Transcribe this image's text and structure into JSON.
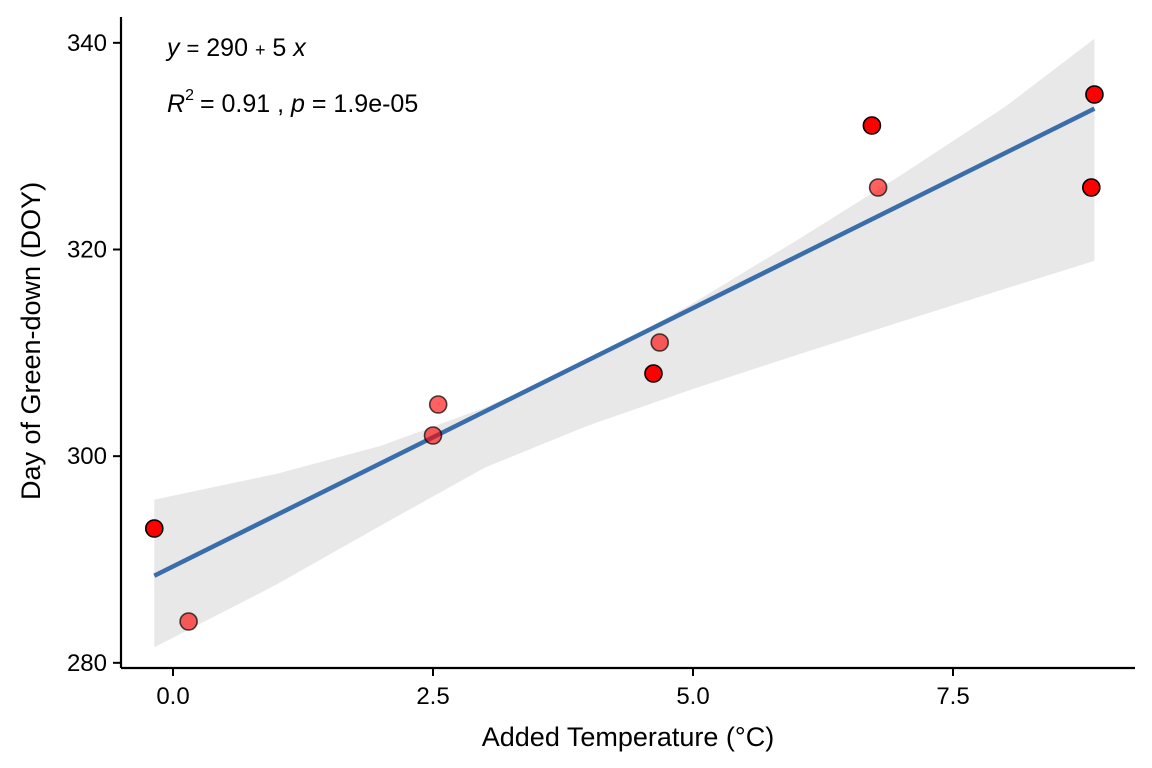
{
  "chart_data": {
    "type": "scatter",
    "xlabel": "Added Temperature (°C)",
    "ylabel": "Day of Green-down (DOY)",
    "xlim": [
      -0.5,
      9.25
    ],
    "ylim": [
      279.5,
      342.5
    ],
    "xticks": [
      0,
      2.5,
      5,
      7.5
    ],
    "xtick_labels": [
      "0.0",
      "2.5",
      "5.0",
      "7.5"
    ],
    "yticks": [
      280,
      300,
      320,
      340
    ],
    "ytick_labels": [
      "280",
      "300",
      "320",
      "340"
    ],
    "grid": false,
    "legend": "none",
    "series": [
      {
        "points": [
          {
            "x": -0.18,
            "y": 293,
            "opaque": true
          },
          {
            "x": 0.15,
            "y": 284,
            "opaque": false
          },
          {
            "x": 2.5,
            "y": 302,
            "opaque": false
          },
          {
            "x": 2.55,
            "y": 305,
            "opaque": false
          },
          {
            "x": 4.62,
            "y": 308,
            "opaque": true
          },
          {
            "x": 4.68,
            "y": 311,
            "opaque": false
          },
          {
            "x": 6.72,
            "y": 332,
            "opaque": true
          },
          {
            "x": 6.78,
            "y": 326,
            "opaque": false
          },
          {
            "x": 8.83,
            "y": 326,
            "opaque": true
          },
          {
            "x": 8.86,
            "y": 335,
            "opaque": true
          }
        ]
      }
    ],
    "regression": {
      "x_range": [
        -0.18,
        8.86
      ],
      "intercept": 289.33,
      "slope": 5.0,
      "confidence_band": [
        {
          "x": -0.18,
          "lower": 281.5,
          "upper": 295.8
        },
        {
          "x": 1.0,
          "lower": 287.6,
          "upper": 298.3
        },
        {
          "x": 2.0,
          "lower": 293.3,
          "upper": 301.0
        },
        {
          "x": 3.0,
          "lower": 298.9,
          "upper": 304.7
        },
        {
          "x": 4.0,
          "lower": 303.0,
          "upper": 309.2
        },
        {
          "x": 5.0,
          "lower": 306.5,
          "upper": 314.8
        },
        {
          "x": 6.0,
          "lower": 309.8,
          "upper": 320.9
        },
        {
          "x": 7.0,
          "lower": 313.0,
          "upper": 327.2
        },
        {
          "x": 8.0,
          "lower": 316.2,
          "upper": 333.8
        },
        {
          "x": 8.86,
          "lower": 318.9,
          "upper": 340.4
        }
      ]
    },
    "annotations": {
      "equation": {
        "y_var": "y",
        "lhs_op": "=",
        "intercept": "290",
        "op": "+",
        "slope": "5",
        "x_var": "x"
      },
      "stats": {
        "r_symbol": "R",
        "r_exponent": "2",
        "r_value": "= 0.91 ,",
        "p_symbol": "p",
        "p_value": "= 1.9e-05"
      }
    },
    "colors": {
      "point_fill": "#ff0000",
      "point_stroke": "#000000",
      "line": "#3a6eaa",
      "band": "#e8e8e8",
      "axis": "#000000"
    }
  }
}
